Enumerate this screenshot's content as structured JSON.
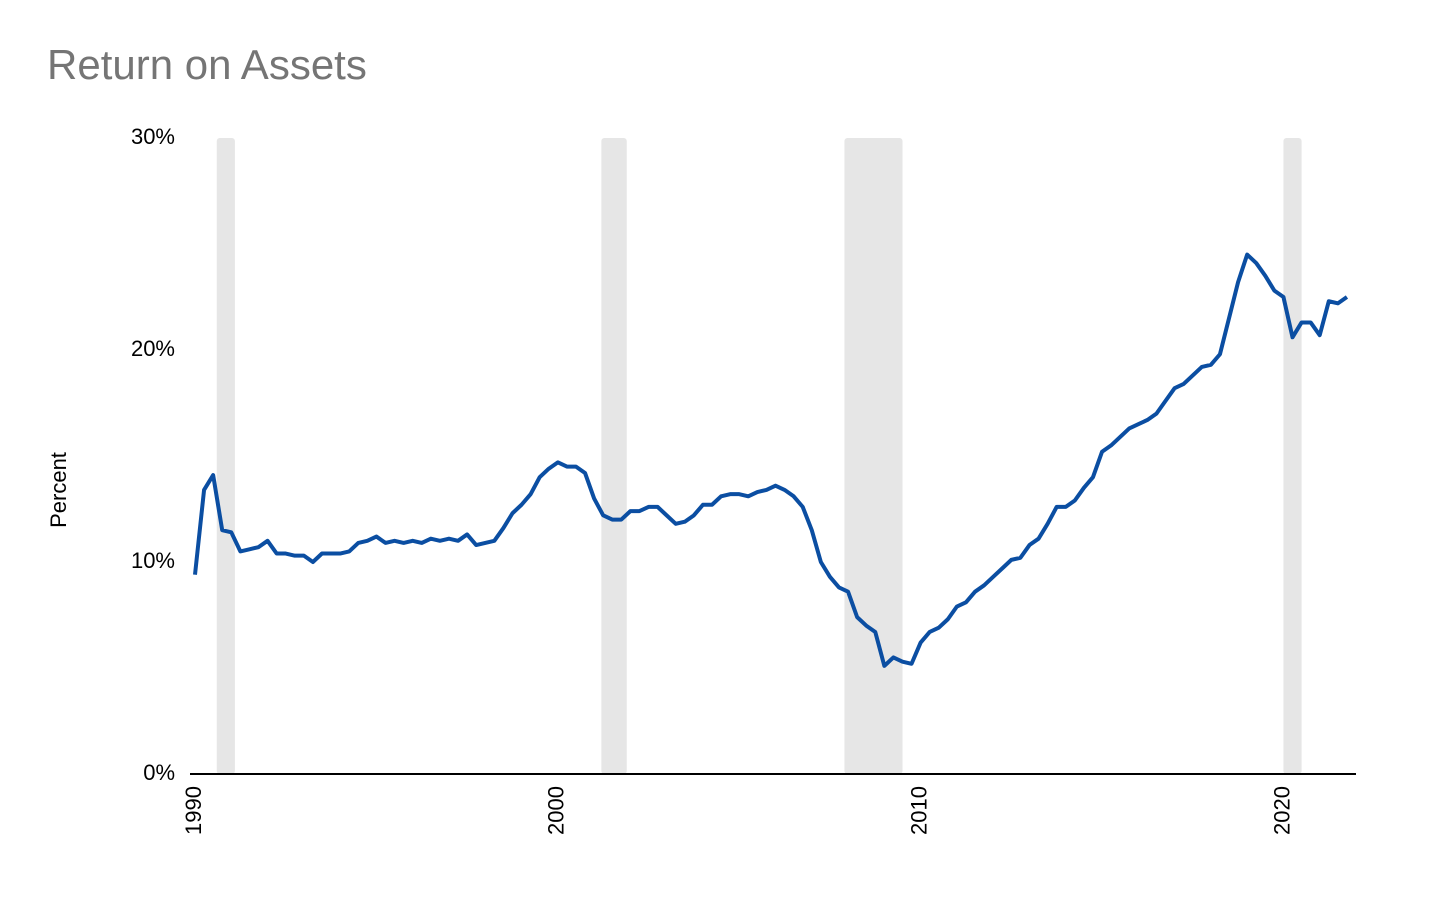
{
  "chart_data": {
    "type": "line",
    "title": "Return on Assets",
    "y_axis_label": "Percent",
    "x": [
      1990,
      1990.25,
      1990.5,
      1990.75,
      1991,
      1991.25,
      1991.5,
      1991.75,
      1992,
      1992.25,
      1992.5,
      1992.75,
      1993,
      1993.25,
      1993.5,
      1993.75,
      1994,
      1994.25,
      1994.5,
      1994.75,
      1995,
      1995.25,
      1995.5,
      1995.75,
      1996,
      1996.25,
      1996.5,
      1996.75,
      1997,
      1997.25,
      1997.5,
      1997.75,
      1998,
      1998.25,
      1998.5,
      1998.75,
      1999,
      1999.25,
      1999.5,
      1999.75,
      2000,
      2000.25,
      2000.5,
      2000.75,
      2001,
      2001.25,
      2001.5,
      2001.75,
      2002,
      2002.25,
      2002.5,
      2002.75,
      2003,
      2003.25,
      2003.5,
      2003.75,
      2004,
      2004.25,
      2004.5,
      2004.75,
      2005,
      2005.25,
      2005.5,
      2005.75,
      2006,
      2006.25,
      2006.5,
      2006.75,
      2007,
      2007.25,
      2007.5,
      2007.75,
      2008,
      2008.25,
      2008.5,
      2008.75,
      2009,
      2009.25,
      2009.5,
      2009.75,
      2010,
      2010.25,
      2010.5,
      2010.75,
      2011,
      2011.25,
      2011.5,
      2011.75,
      2012,
      2012.25,
      2012.5,
      2012.75,
      2013,
      2013.25,
      2013.5,
      2013.75,
      2014,
      2014.25,
      2014.5,
      2014.75,
      2015,
      2015.25,
      2015.5,
      2015.75,
      2016,
      2016.25,
      2016.5,
      2016.75,
      2017,
      2017.25,
      2017.5,
      2017.75,
      2018,
      2018.25,
      2018.5,
      2018.75,
      2019,
      2019.25,
      2019.5,
      2019.75,
      2020,
      2020.25,
      2020.5,
      2020.75,
      2021,
      2021.25,
      2021.5,
      2021.75
    ],
    "series": [
      {
        "name": "Return on Assets",
        "color": "#0b4ea2",
        "values": [
          9.4,
          13.4,
          14.1,
          11.5,
          11.4,
          10.5,
          10.6,
          10.7,
          11.0,
          10.4,
          10.4,
          10.3,
          10.3,
          10.0,
          10.4,
          10.4,
          10.4,
          10.5,
          10.9,
          11.0,
          11.2,
          10.9,
          11.0,
          10.9,
          11.0,
          10.9,
          11.1,
          11.0,
          11.1,
          11.0,
          11.3,
          10.8,
          10.9,
          11.0,
          11.6,
          12.3,
          12.7,
          13.2,
          14.0,
          14.4,
          14.7,
          14.5,
          14.5,
          14.2,
          13.0,
          12.2,
          12.0,
          12.0,
          12.4,
          12.4,
          12.6,
          12.6,
          12.2,
          11.8,
          11.9,
          12.2,
          12.7,
          12.7,
          13.1,
          13.2,
          13.2,
          13.1,
          13.3,
          13.4,
          13.6,
          13.4,
          13.1,
          12.6,
          11.5,
          10.0,
          9.3,
          8.8,
          8.6,
          7.4,
          7.0,
          6.7,
          5.1,
          5.5,
          5.3,
          5.2,
          6.2,
          6.7,
          6.9,
          7.3,
          7.9,
          8.1,
          8.6,
          8.9,
          9.3,
          9.7,
          10.1,
          10.2,
          10.8,
          11.1,
          11.8,
          12.6,
          12.6,
          12.9,
          13.5,
          14.0,
          15.2,
          15.5,
          15.9,
          16.3,
          16.5,
          16.7,
          17.0,
          17.6,
          18.2,
          18.4,
          18.8,
          19.2,
          19.3,
          19.8,
          21.5,
          23.2,
          24.5,
          24.1,
          23.5,
          22.8,
          22.5,
          20.6,
          21.3,
          21.3,
          20.7,
          22.3,
          22.2,
          22.5
        ]
      }
    ],
    "recessions": [
      [
        1990.6,
        1991.1
      ],
      [
        2001.2,
        2001.9
      ],
      [
        2007.9,
        2009.5
      ],
      [
        2020.0,
        2020.5
      ]
    ],
    "recession_color": "#e6e6e6",
    "xlim": [
      1990,
      2022
    ],
    "xticks": [
      1990,
      2000,
      2010,
      2020
    ],
    "ylim": [
      0,
      30
    ],
    "yticks": [
      {
        "value": 0,
        "label": "0%"
      },
      {
        "value": 10,
        "label": "10%"
      },
      {
        "value": 20,
        "label": "20%"
      },
      {
        "value": 30,
        "label": "30%"
      }
    ],
    "grid": false
  }
}
